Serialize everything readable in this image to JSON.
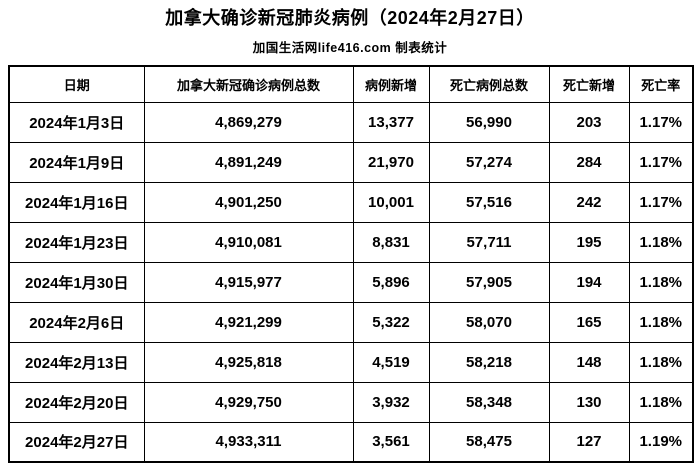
{
  "page": {
    "title": "加拿大确诊新冠肺炎病例（2024年2月27日）",
    "subtitle": "加国生活网life416.com 制表统计"
  },
  "colors": {
    "text": "#000000",
    "background": "#ffffff",
    "border": "#000000"
  },
  "chart_data": {
    "type": "table",
    "title": "加拿大确诊新冠肺炎病例（2024年2月27日）",
    "source_label": "加国生活网life416.com 制表统计",
    "columns": [
      "日期",
      "加拿大新冠确诊病例总数",
      "病例新增",
      "死亡病例总数",
      "死亡新增",
      "死亡率"
    ],
    "rows": [
      [
        "2024年1月3日",
        "4,869,279",
        "13,377",
        "56,990",
        "203",
        "1.17%"
      ],
      [
        "2024年1月9日",
        "4,891,249",
        "21,970",
        "57,274",
        "284",
        "1.17%"
      ],
      [
        "2024年1月16日",
        "4,901,250",
        "10,001",
        "57,516",
        "242",
        "1.17%"
      ],
      [
        "2024年1月23日",
        "4,910,081",
        "8,831",
        "57,711",
        "195",
        "1.18%"
      ],
      [
        "2024年1月30日",
        "4,915,977",
        "5,896",
        "57,905",
        "194",
        "1.18%"
      ],
      [
        "2024年2月6日",
        "4,921,299",
        "5,322",
        "58,070",
        "165",
        "1.18%"
      ],
      [
        "2024年2月13日",
        "4,925,818",
        "4,519",
        "58,218",
        "148",
        "1.18%"
      ],
      [
        "2024年2月20日",
        "4,929,750",
        "3,932",
        "58,348",
        "130",
        "1.18%"
      ],
      [
        "2024年2月27日",
        "4,933,311",
        "3,561",
        "58,475",
        "127",
        "1.19%"
      ]
    ]
  }
}
